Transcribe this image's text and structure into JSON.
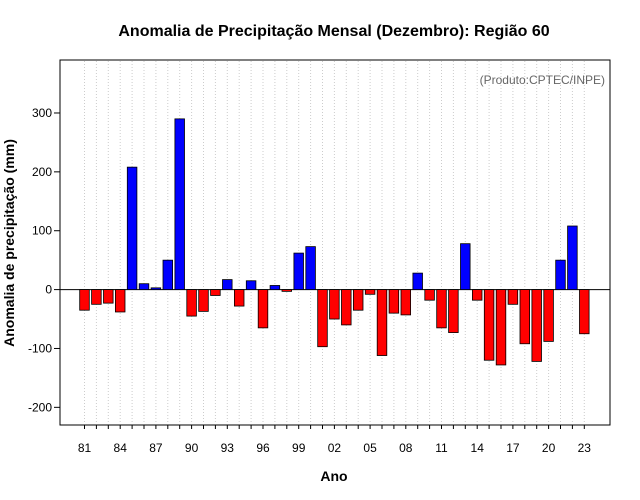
{
  "chart_data": {
    "type": "bar",
    "title": "Anomalia de Precipitação Mensal (Dezembro): Região 60",
    "xlabel": "Ano",
    "ylabel": "Anomalia de precipitação (mm)",
    "annotation": "(Produto:CPTEC/INPE)",
    "ylim": [
      -230,
      390
    ],
    "yticks": [
      -200,
      -100,
      0,
      100,
      200,
      300
    ],
    "years": [
      1981,
      1982,
      1983,
      1984,
      1985,
      1986,
      1987,
      1988,
      1989,
      1990,
      1991,
      1992,
      1993,
      1994,
      1995,
      1996,
      1997,
      1998,
      1999,
      2000,
      2001,
      2002,
      2003,
      2004,
      2005,
      2006,
      2007,
      2008,
      2009,
      2010,
      2011,
      2012,
      2013,
      2014,
      2015,
      2016,
      2017,
      2018,
      2019,
      2020,
      2021,
      2022,
      2023
    ],
    "values": [
      -35,
      -25,
      -23,
      -38,
      208,
      10,
      3,
      50,
      290,
      -45,
      -37,
      -10,
      17,
      -28,
      15,
      -65,
      7,
      -3,
      62,
      73,
      -97,
      -50,
      -60,
      -35,
      -8,
      -112,
      -40,
      -43,
      28,
      -18,
      -65,
      -73,
      78,
      -18,
      -120,
      -128,
      -25,
      -92,
      -122,
      -88,
      50,
      108,
      -75
    ],
    "xtick_labels": [
      "81",
      "84",
      "87",
      "90",
      "93",
      "96",
      "99",
      "02",
      "05",
      "08",
      "11",
      "14",
      "17",
      "20",
      "23"
    ],
    "xtick_years": [
      1981,
      1984,
      1987,
      1990,
      1993,
      1996,
      1999,
      2002,
      2005,
      2008,
      2011,
      2014,
      2017,
      2020,
      2023
    ],
    "colors": {
      "positive": "#0000ff",
      "negative": "#ff0000"
    },
    "grid": "vertical dotted"
  }
}
